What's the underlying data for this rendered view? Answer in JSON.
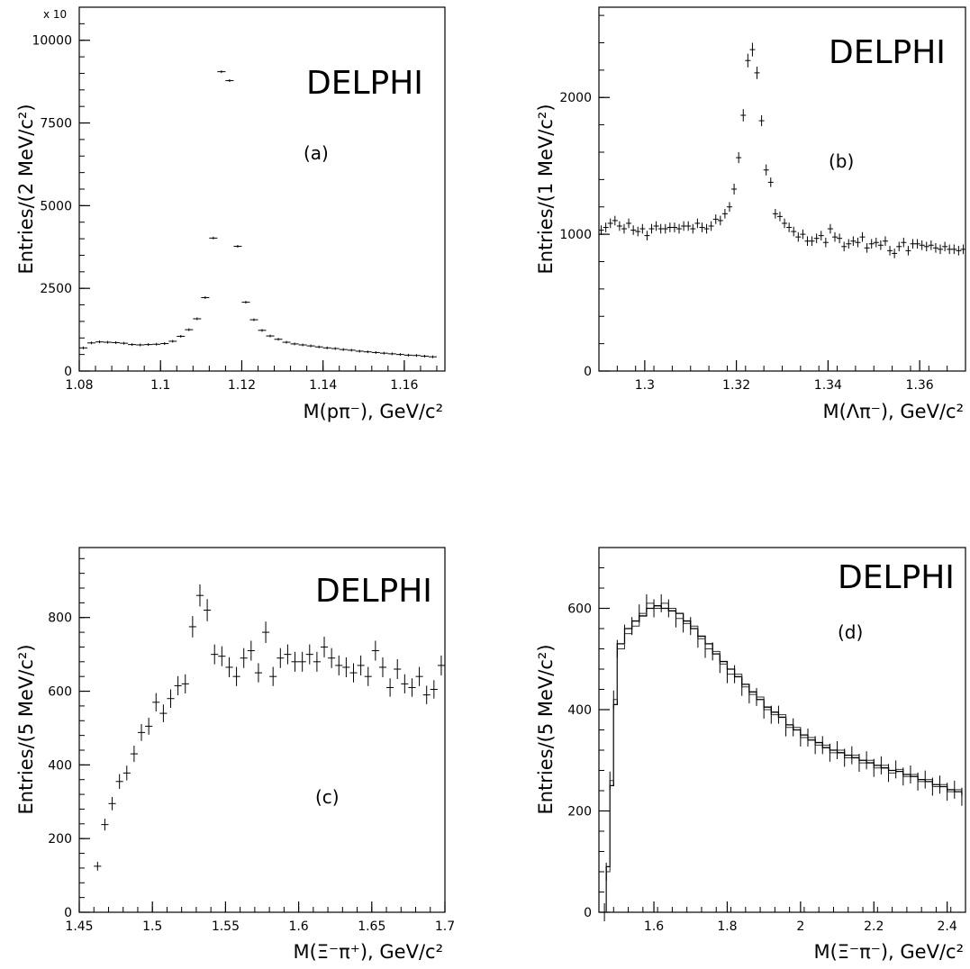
{
  "chart_data": [
    {
      "id": "a",
      "type": "scatter",
      "panel_label": "(a)",
      "experiment": "DELPHI",
      "ylabel": "Entries/(2 MeV/c²)",
      "xlabel": "M(pπ⁻), GeV/c²",
      "y_multiplier": "x 10",
      "xlim": [
        1.08,
        1.17
      ],
      "ylim": [
        0,
        11000
      ],
      "xticks": [
        1.08,
        1.1,
        1.12,
        1.14,
        1.16
      ],
      "xtick_labels": [
        "1.08",
        "1.1",
        "1.12",
        "1.14",
        "1.16"
      ],
      "yticks": [
        0,
        2500,
        5000,
        7500,
        10000
      ],
      "ytick_labels": [
        "0",
        "2500",
        "5000",
        "7500",
        "10000"
      ],
      "x_err": 0.001,
      "x": [
        1.081,
        1.083,
        1.085,
        1.087,
        1.089,
        1.091,
        1.093,
        1.095,
        1.097,
        1.099,
        1.101,
        1.103,
        1.105,
        1.107,
        1.109,
        1.111,
        1.113,
        1.115,
        1.117,
        1.119,
        1.121,
        1.123,
        1.125,
        1.127,
        1.129,
        1.131,
        1.133,
        1.135,
        1.137,
        1.139,
        1.141,
        1.143,
        1.145,
        1.147,
        1.149,
        1.151,
        1.153,
        1.155,
        1.157,
        1.159,
        1.161,
        1.163,
        1.165,
        1.167
      ],
      "y": [
        700,
        850,
        880,
        870,
        860,
        840,
        800,
        790,
        800,
        810,
        830,
        900,
        1050,
        1250,
        1580,
        2220,
        4020,
        9050,
        8780,
        3770,
        2080,
        1550,
        1230,
        1060,
        960,
        870,
        820,
        790,
        760,
        730,
        700,
        680,
        650,
        630,
        600,
        580,
        560,
        540,
        520,
        500,
        480,
        470,
        450,
        430
      ],
      "y_err": [
        0,
        0,
        0,
        0,
        0,
        0,
        0,
        0,
        0,
        0,
        0,
        0,
        0,
        0,
        0,
        0,
        0,
        0,
        0,
        0,
        0,
        0,
        0,
        0,
        0,
        0,
        0,
        0,
        0,
        0,
        0,
        0,
        0,
        0,
        0,
        0,
        0,
        0,
        0,
        0,
        0,
        0,
        0,
        0
      ]
    },
    {
      "id": "b",
      "type": "scatter",
      "panel_label": "(b)",
      "experiment": "DELPHI",
      "ylabel": "Entries/(1 MeV/c²)",
      "xlabel": "M(Λπ⁻), GeV/c²",
      "xlim": [
        1.29,
        1.37
      ],
      "ylim": [
        0,
        2660
      ],
      "xticks": [
        1.3,
        1.32,
        1.34,
        1.36
      ],
      "xtick_labels": [
        "1.3",
        "1.32",
        "1.34",
        "1.36"
      ],
      "yticks": [
        0,
        1000,
        2000
      ],
      "ytick_labels": [
        "0",
        "1000",
        "2000"
      ],
      "x_err": 0,
      "x": [
        1.2905,
        1.2915,
        1.2925,
        1.2935,
        1.2945,
        1.2955,
        1.2965,
        1.2975,
        1.2985,
        1.2995,
        1.3005,
        1.3015,
        1.3025,
        1.3035,
        1.3045,
        1.3055,
        1.3065,
        1.3075,
        1.3085,
        1.3095,
        1.3105,
        1.3115,
        1.3125,
        1.3135,
        1.3145,
        1.3155,
        1.3165,
        1.3175,
        1.3185,
        1.3195,
        1.3205,
        1.3215,
        1.3225,
        1.3235,
        1.3245,
        1.3255,
        1.3265,
        1.3275,
        1.3285,
        1.3295,
        1.3305,
        1.3315,
        1.3325,
        1.3335,
        1.3345,
        1.3355,
        1.3365,
        1.3375,
        1.3385,
        1.3395,
        1.3405,
        1.3415,
        1.3425,
        1.3435,
        1.3445,
        1.3455,
        1.3465,
        1.3475,
        1.3485,
        1.3495,
        1.3505,
        1.3515,
        1.3525,
        1.3535,
        1.3545,
        1.3555,
        1.3565,
        1.3575,
        1.3585,
        1.3595,
        1.3605,
        1.3615,
        1.3625,
        1.3635,
        1.3645,
        1.3655,
        1.3665,
        1.3675,
        1.3685,
        1.3695
      ],
      "y": [
        1030,
        1050,
        1080,
        1100,
        1060,
        1040,
        1080,
        1030,
        1020,
        1040,
        990,
        1040,
        1060,
        1040,
        1040,
        1050,
        1050,
        1040,
        1060,
        1060,
        1040,
        1080,
        1050,
        1040,
        1060,
        1110,
        1100,
        1150,
        1200,
        1330,
        1560,
        1870,
        2270,
        2350,
        2180,
        1830,
        1470,
        1380,
        1150,
        1130,
        1080,
        1050,
        1020,
        980,
        1000,
        950,
        950,
        970,
        990,
        940,
        1040,
        980,
        970,
        910,
        930,
        950,
        940,
        980,
        900,
        930,
        940,
        920,
        950,
        880,
        860,
        910,
        940,
        880,
        930,
        930,
        920,
        910,
        920,
        900,
        890,
        910,
        890,
        890,
        880,
        890
      ],
      "y_err": [
        35,
        35,
        35,
        35,
        35,
        35,
        35,
        35,
        35,
        35,
        35,
        35,
        35,
        35,
        35,
        35,
        35,
        35,
        35,
        35,
        35,
        35,
        35,
        35,
        35,
        35,
        35,
        35,
        35,
        40,
        40,
        45,
        50,
        50,
        45,
        40,
        40,
        35,
        35,
        35,
        35,
        35,
        35,
        35,
        35,
        35,
        35,
        35,
        35,
        35,
        35,
        35,
        35,
        35,
        35,
        35,
        35,
        35,
        35,
        35,
        35,
        35,
        35,
        35,
        35,
        35,
        35,
        35,
        35,
        35,
        35,
        35,
        35,
        35,
        35,
        35,
        35,
        35,
        35,
        35
      ]
    },
    {
      "id": "c",
      "type": "scatter",
      "panel_label": "(c)",
      "experiment": "DELPHI",
      "ylabel": "Entries/(5 MeV/c²)",
      "xlabel": "M(Ξ⁻π⁺), GeV/c²",
      "xlim": [
        1.45,
        1.7
      ],
      "ylim": [
        0,
        990
      ],
      "xticks": [
        1.45,
        1.5,
        1.55,
        1.6,
        1.65,
        1.7
      ],
      "xtick_labels": [
        "1.45",
        "1.5",
        "1.55",
        "1.6",
        "1.65",
        "1.7"
      ],
      "yticks": [
        0,
        200,
        400,
        600,
        800
      ],
      "ytick_labels": [
        "0",
        "200",
        "400",
        "600",
        "800"
      ],
      "x_err": 0.0025,
      "x": [
        1.4625,
        1.4675,
        1.4725,
        1.4775,
        1.4825,
        1.4875,
        1.4925,
        1.4975,
        1.5025,
        1.5075,
        1.5125,
        1.5175,
        1.5225,
        1.5275,
        1.5325,
        1.5375,
        1.5425,
        1.5475,
        1.5525,
        1.5575,
        1.5625,
        1.5675,
        1.5725,
        1.5775,
        1.5825,
        1.5875,
        1.5925,
        1.5975,
        1.6025,
        1.6075,
        1.6125,
        1.6175,
        1.6225,
        1.6275,
        1.6325,
        1.6375,
        1.6425,
        1.6475,
        1.6525,
        1.6575,
        1.6625,
        1.6675,
        1.6725,
        1.6775,
        1.6825,
        1.6875,
        1.6925,
        1.6975
      ],
      "y": [
        125,
        238,
        295,
        355,
        378,
        430,
        488,
        505,
        570,
        540,
        580,
        615,
        620,
        775,
        860,
        820,
        700,
        695,
        665,
        640,
        690,
        710,
        650,
        760,
        640,
        690,
        700,
        680,
        680,
        700,
        680,
        720,
        690,
        670,
        665,
        650,
        670,
        640,
        710,
        665,
        610,
        660,
        620,
        610,
        640,
        590,
        605,
        670
      ],
      "y_err": [
        12,
        16,
        18,
        20,
        20,
        22,
        23,
        23,
        25,
        24,
        25,
        26,
        26,
        29,
        30,
        30,
        27,
        27,
        27,
        26,
        27,
        27,
        26,
        29,
        26,
        27,
        27,
        27,
        27,
        27,
        27,
        28,
        27,
        27,
        27,
        26,
        27,
        26,
        27,
        27,
        25,
        27,
        26,
        25,
        26,
        25,
        25,
        27
      ]
    },
    {
      "id": "d",
      "type": "line",
      "panel_label": "(d)",
      "experiment": "DELPHI",
      "ylabel": "Entries/(5 MeV/c²)",
      "xlabel": "M(Ξ⁻π⁻), GeV/c²",
      "xlim": [
        1.45,
        2.45
      ],
      "ylim": [
        0,
        720
      ],
      "xticks": [
        1.6,
        1.8,
        2.0,
        2.2,
        2.4
      ],
      "xtick_labels": [
        "1.6",
        "1.8",
        "2",
        "2.2",
        "2.4"
      ],
      "yticks": [
        0,
        200,
        400,
        600
      ],
      "ytick_labels": [
        "0",
        "200",
        "400",
        "600"
      ],
      "series": [
        {
          "x": [
            1.465,
            1.47,
            1.48,
            1.49,
            1.5,
            1.52,
            1.54,
            1.56,
            1.58,
            1.6,
            1.62,
            1.64,
            1.66,
            1.68,
            1.7,
            1.72,
            1.74,
            1.76,
            1.78,
            1.8,
            1.82,
            1.84,
            1.86,
            1.88,
            1.9,
            1.92,
            1.94,
            1.96,
            1.98,
            2.0,
            2.02,
            2.04,
            2.06,
            2.08,
            2.1,
            2.12,
            2.14,
            2.16,
            2.18,
            2.2,
            2.22,
            2.24,
            2.26,
            2.28,
            2.3,
            2.32,
            2.34,
            2.36,
            2.38,
            2.4,
            2.42,
            2.44
          ],
          "y": [
            0,
            90,
            250,
            410,
            530,
            560,
            575,
            585,
            600,
            605,
            600,
            595,
            590,
            575,
            560,
            545,
            530,
            510,
            495,
            480,
            465,
            450,
            435,
            420,
            405,
            395,
            385,
            370,
            360,
            350,
            340,
            335,
            325,
            320,
            315,
            310,
            305,
            300,
            295,
            290,
            285,
            280,
            278,
            272,
            268,
            262,
            258,
            252,
            248,
            242,
            238,
            232
          ]
        },
        {
          "x": [
            1.465,
            1.47,
            1.48,
            1.49,
            1.5,
            1.52,
            1.54,
            1.56,
            1.58,
            1.6,
            1.62,
            1.64,
            1.66,
            1.68,
            1.7,
            1.72,
            1.74,
            1.76,
            1.78,
            1.8,
            1.82,
            1.84,
            1.86,
            1.88,
            1.9,
            1.92,
            1.94,
            1.96,
            1.98,
            2.0,
            2.02,
            2.04,
            2.06,
            2.08,
            2.1,
            2.12,
            2.14,
            2.16,
            2.18,
            2.2,
            2.22,
            2.24,
            2.26,
            2.28,
            2.3,
            2.32,
            2.34,
            2.36,
            2.38,
            2.4,
            2.42,
            2.44
          ],
          "y": [
            0,
            80,
            260,
            420,
            520,
            550,
            565,
            590,
            610,
            600,
            610,
            600,
            580,
            570,
            565,
            540,
            520,
            515,
            490,
            470,
            470,
            445,
            430,
            425,
            400,
            390,
            390,
            365,
            365,
            345,
            345,
            330,
            330,
            315,
            320,
            305,
            310,
            295,
            300,
            285,
            290,
            275,
            282,
            268,
            272,
            258,
            262,
            248,
            252,
            238,
            242,
            228
          ]
        }
      ]
    }
  ]
}
